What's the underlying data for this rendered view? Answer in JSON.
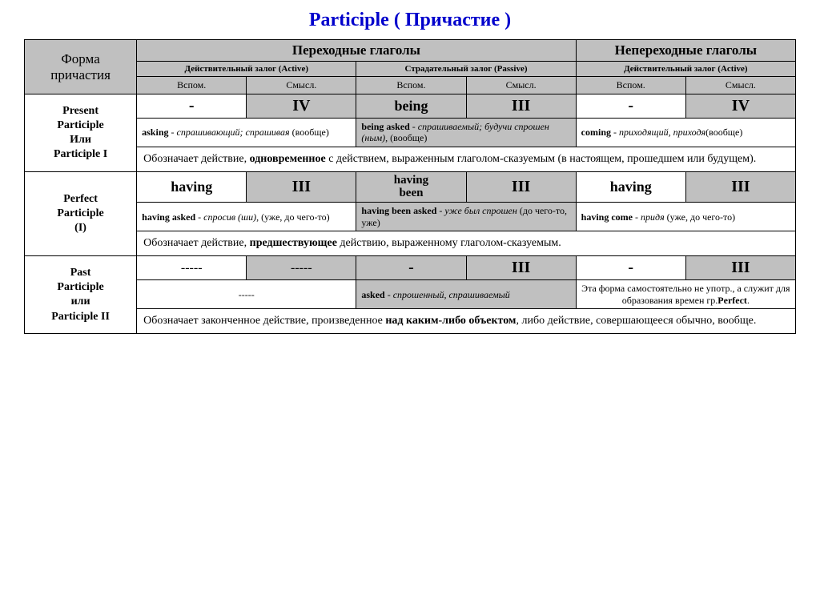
{
  "title": "Participle  ( Причастие )",
  "header": {
    "form": "Форма причастия",
    "transitive": "Переходные глаголы",
    "intransitive": "Непереходные глаголы",
    "active_trans": "Действительный залог (Active)",
    "passive": "Страдательный залог (Passive)",
    "active_intrans": "Действительный залог (Active)",
    "aux": "Вспом.",
    "main": "Смысл."
  },
  "rows": {
    "present": {
      "label_html": "Present<br>Participle<br>Или<br>Participle I",
      "active_aux": "-",
      "active_main": "IV",
      "passive_aux": "being",
      "passive_main": "III",
      "intrans_aux": "-",
      "intrans_main": "IV",
      "active_ex_html": "<span class='b'>asking</span> - <span class='it'>спрашивающий; спрашивая</span> (вообще)",
      "passive_ex_html": "<span class='b'>being asked</span> - <span class='it'>спрашиваемый; будучи спрошен (ным),</span> (вообще)",
      "intrans_ex_html": "<span class='b'>coming</span> - <span class='it'>приходящий, приходя</span>(вообще)",
      "desc_html": "Обозначает действие, <span class='b'>одновременное</span> с действием, выраженным глаголом-сказуемым (в настоящем, прошедшем или будущем)."
    },
    "perfect": {
      "label_html": "Perfect<br>Participle<br>(I)",
      "active_aux": "having",
      "active_main": "III",
      "passive_aux_html": "having<br>been",
      "passive_main": "III",
      "intrans_aux": "having",
      "intrans_main": "III",
      "active_ex_html": "<span class='b'>having asked</span> - <span class='it'>спросив (ши)</span>, (уже, до чего-то)",
      "passive_ex_html": "<span class='b'>having been asked</span> - <span class='it'>уже был спрошен</span> (до чего-то, уже)",
      "intrans_ex_html": "<span class='b'>having come</span> - <span class='it'>придя</span> (уже, до чего-то)",
      "desc_html": "Обозначает действие, <span class='b'>предшествующее</span> действию, выраженному глаголом-сказуемым."
    },
    "past": {
      "label_html": "Past<br>Participle<br>или<br>Participle II",
      "active_aux": "-----",
      "active_main": "-----",
      "passive_aux": "-",
      "passive_main": "III",
      "intrans_aux": "-",
      "intrans_main": "III",
      "active_ex": "-----",
      "passive_ex_html": "<span class='b'>asked</span> - <span class='it'>спрошенный, спрашиваемый</span>",
      "intrans_ex_html": "Эта форма самостоятельно не употр., а служит для образования времен гр.<span class='b'>Perfect</span>.",
      "desc_html": "Обозначает законченное действие, произведенное <span class='b'>над каким-либо объектом</span>, либо действие, совершающееся обычно, вообще."
    }
  }
}
